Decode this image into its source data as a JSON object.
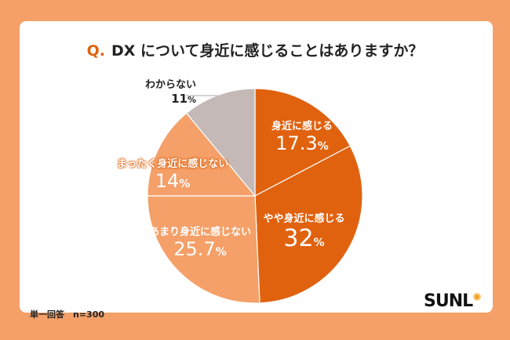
{
  "title": {
    "prefix": "Q.",
    "text": "DX について身近に感じることはありますか？"
  },
  "footnote": "単一回答　n=300",
  "logo": "SUNL",
  "chart_data": {
    "type": "pie",
    "start": "top, clockwise",
    "slices": [
      {
        "label": "身近に感じる",
        "value": 17.3,
        "color": "#e0620f"
      },
      {
        "label": "やや身近に感じる",
        "value": 32,
        "color": "#e0620f"
      },
      {
        "label": "あまり身近に感じない",
        "value": 25.7,
        "color": "#f4a068"
      },
      {
        "label": "まったく身近に感じない",
        "value": 14,
        "color": "#f4a068"
      },
      {
        "label": "わからない",
        "value": 11,
        "color": "#c4b9b6"
      }
    ],
    "unit": "%"
  }
}
